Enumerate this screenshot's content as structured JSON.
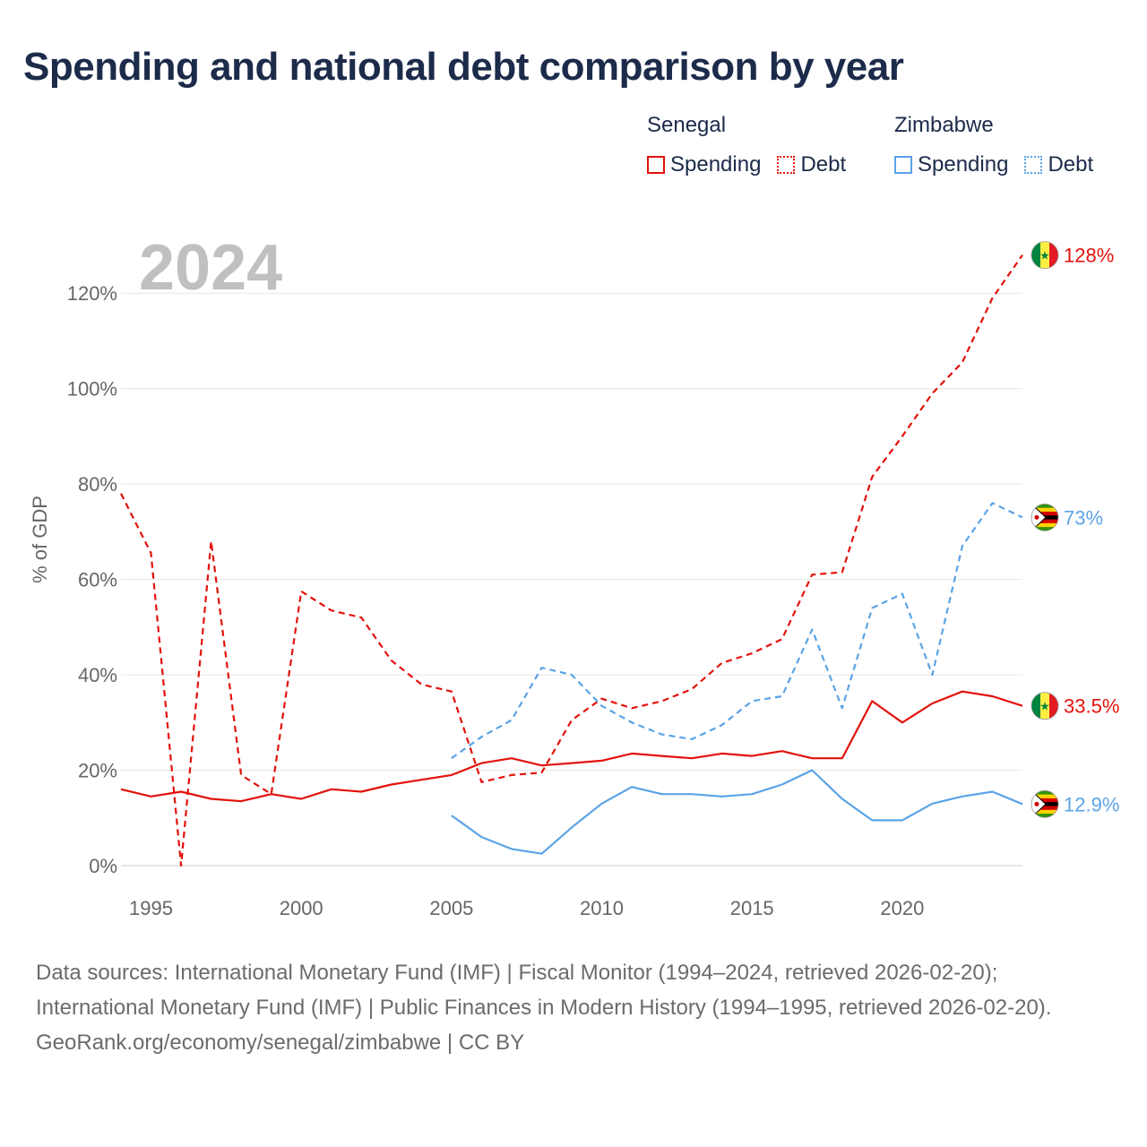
{
  "chart_data": {
    "type": "line",
    "title": "Spending and national debt comparison by year",
    "ylabel": "% of GDP",
    "xlabel": "",
    "year_label": "2024",
    "xlim": [
      1994,
      2024
    ],
    "ylim": [
      0,
      130
    ],
    "x_ticks": [
      1995,
      2000,
      2005,
      2010,
      2015,
      2020
    ],
    "y_ticks": [
      0,
      20,
      40,
      60,
      80,
      100,
      120
    ],
    "y_tick_labels": [
      "0%",
      "20%",
      "40%",
      "60%",
      "80%",
      "100%",
      "120%"
    ],
    "grid": true,
    "legend": {
      "position": "top-right",
      "groups": [
        {
          "name": "Senegal",
          "items": [
            {
              "label": "Spending",
              "style": "solid",
              "color": "#e3120b"
            },
            {
              "label": "Debt",
              "style": "dotted",
              "color": "#e3120b"
            }
          ]
        },
        {
          "name": "Zimbabwe",
          "items": [
            {
              "label": "Spending",
              "style": "solid",
              "color": "#5ba3e6"
            },
            {
              "label": "Debt",
              "style": "dotted",
              "color": "#5ba3e6"
            }
          ]
        }
      ]
    },
    "series": [
      {
        "name": "Senegal Debt",
        "country": "Senegal",
        "metric": "Debt",
        "color": "#e3120b",
        "dashed": true,
        "end_label": "128%",
        "x": [
          1994,
          1995,
          1996,
          1997,
          1998,
          1999,
          2000,
          2001,
          2002,
          2003,
          2004,
          2005,
          2006,
          2007,
          2008,
          2009,
          2010,
          2011,
          2012,
          2013,
          2014,
          2015,
          2016,
          2017,
          2018,
          2019,
          2020,
          2021,
          2022,
          2023,
          2024
        ],
        "values": [
          78,
          65.5,
          0,
          68,
          19,
          15,
          57.5,
          53.5,
          52,
          43,
          38,
          36.5,
          17.5,
          19,
          19.5,
          30.5,
          35,
          33,
          34.5,
          37,
          42.5,
          44.5,
          47.5,
          61,
          61.5,
          81.5,
          90,
          99,
          105.5,
          119,
          128
        ]
      },
      {
        "name": "Senegal Spending",
        "country": "Senegal",
        "metric": "Spending",
        "color": "#e3120b",
        "dashed": false,
        "end_label": "33.5%",
        "x": [
          1994,
          1995,
          1996,
          1997,
          1998,
          1999,
          2000,
          2001,
          2002,
          2003,
          2004,
          2005,
          2006,
          2007,
          2008,
          2009,
          2010,
          2011,
          2012,
          2013,
          2014,
          2015,
          2016,
          2017,
          2018,
          2019,
          2020,
          2021,
          2022,
          2023,
          2024
        ],
        "values": [
          16,
          14.5,
          15.5,
          14,
          13.5,
          15,
          14,
          16,
          15.5,
          17,
          18,
          19,
          21.5,
          22.5,
          21,
          21.5,
          22,
          23.5,
          23,
          22.5,
          23.5,
          23,
          24,
          22.5,
          22.5,
          34.5,
          30,
          34,
          36.5,
          35.5,
          33.5
        ]
      },
      {
        "name": "Zimbabwe Debt",
        "country": "Zimbabwe",
        "metric": "Debt",
        "color": "#5ba3e6",
        "dashed": true,
        "end_label": "73%",
        "x": [
          2005,
          2006,
          2007,
          2008,
          2009,
          2010,
          2011,
          2012,
          2013,
          2014,
          2015,
          2016,
          2017,
          2018,
          2019,
          2020,
          2021,
          2022,
          2023,
          2024
        ],
        "values": [
          22.5,
          27,
          30.5,
          41.5,
          40,
          33.5,
          30,
          27.5,
          26.5,
          29.5,
          34.5,
          35.5,
          49.5,
          33,
          54,
          57,
          40,
          67,
          76,
          73
        ]
      },
      {
        "name": "Zimbabwe Spending",
        "country": "Zimbabwe",
        "metric": "Spending",
        "color": "#5ba3e6",
        "dashed": false,
        "end_label": "12.9%",
        "x": [
          2005,
          2006,
          2007,
          2008,
          2009,
          2010,
          2011,
          2012,
          2013,
          2014,
          2015,
          2016,
          2017,
          2018,
          2019,
          2020,
          2021,
          2022,
          2023,
          2024
        ],
        "values": [
          10.5,
          6,
          3.5,
          2.5,
          8,
          13,
          16.5,
          15,
          15,
          14.5,
          15,
          17,
          20,
          14,
          9.5,
          9.5,
          13,
          14.5,
          15.5,
          12.9
        ]
      }
    ]
  },
  "footer": {
    "sources": "Data sources: International Monetary Fund (IMF) | Fiscal Monitor (1994–2024, retrieved 2026-02-20); International Monetary Fund (IMF) | Public Finances in Modern History (1994–1995, retrieved 2026-02-20).",
    "credit": "GeoRank.org/economy/senegal/zimbabwe | CC BY"
  }
}
